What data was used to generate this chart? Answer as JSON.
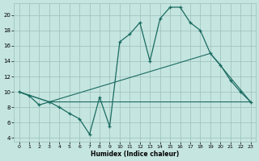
{
  "background_color": "#c5e5e0",
  "grid_color": "#9bbfba",
  "line_color": "#1a6b60",
  "xlabel": "Humidex (Indice chaleur)",
  "xlim": [
    -0.5,
    23.5
  ],
  "ylim": [
    3.5,
    21.5
  ],
  "yticks": [
    4,
    6,
    8,
    10,
    12,
    14,
    16,
    18,
    20
  ],
  "xticks": [
    0,
    1,
    2,
    3,
    4,
    5,
    6,
    7,
    8,
    9,
    10,
    11,
    12,
    13,
    14,
    15,
    16,
    17,
    18,
    19,
    20,
    21,
    22,
    23
  ],
  "line1_x": [
    0,
    1,
    2,
    3,
    4,
    5,
    6,
    7,
    8,
    9,
    10,
    11,
    12,
    13,
    14,
    15,
    16,
    17,
    18,
    19,
    20,
    21,
    22,
    23
  ],
  "line1_y": [
    10.0,
    9.5,
    8.3,
    8.7,
    8.0,
    7.2,
    6.5,
    4.5,
    9.3,
    5.5,
    16.5,
    17.5,
    19.0,
    14.0,
    19.5,
    21.0,
    21.0,
    19.0,
    18.0,
    15.0,
    13.5,
    11.5,
    10.0,
    8.7
  ],
  "line2_x": [
    0,
    3,
    19,
    23
  ],
  "line2_y": [
    10.0,
    8.7,
    15.0,
    8.7
  ],
  "line3_x": [
    0,
    3,
    23
  ],
  "line3_y": [
    10.0,
    8.7,
    8.7
  ]
}
